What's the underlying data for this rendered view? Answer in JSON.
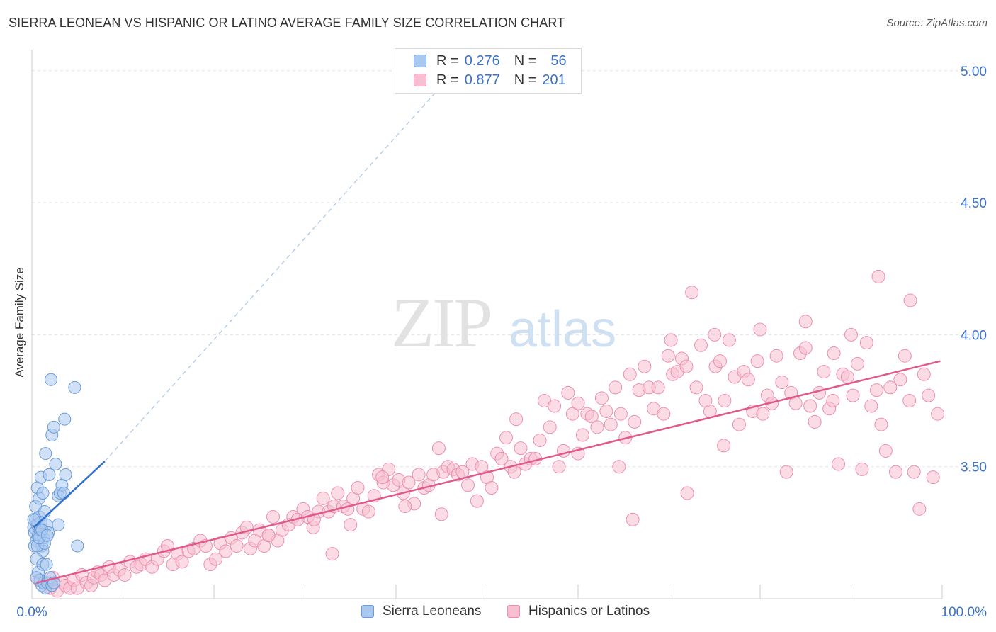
{
  "title": "SIERRA LEONEAN VS HISPANIC OR LATINO AVERAGE FAMILY SIZE CORRELATION CHART",
  "source": "Source: ZipAtlas.com",
  "watermark": {
    "zip": "ZIP",
    "atlas": "atlas"
  },
  "legend": {
    "r_label": "R =",
    "n_label": "N =",
    "rows": [
      {
        "r": "0.276",
        "n": "56",
        "fill": "#a9c8f0",
        "stroke": "#6b9bd8"
      },
      {
        "r": "0.877",
        "n": "201",
        "fill": "#f7bfd0",
        "stroke": "#ec8fae"
      }
    ]
  },
  "bottom_legend": [
    {
      "label": "Sierra Leoneans",
      "fill": "#a9c8f0",
      "stroke": "#6b9bd8"
    },
    {
      "label": "Hispanics or Latinos",
      "fill": "#f7bfd0",
      "stroke": "#ec8fae"
    }
  ],
  "chart_data": {
    "type": "scatter",
    "title": "SIERRA LEONEAN VS HISPANIC OR LATINO AVERAGE FAMILY SIZE CORRELATION CHART",
    "xlabel": "",
    "ylabel": "Average Family Size",
    "x_unit": "%",
    "xlim": [
      0,
      100
    ],
    "ylim": [
      3.0,
      5.08
    ],
    "x_tick_labels": [
      "0.0%",
      "100.0%"
    ],
    "y_ticks": [
      5.0,
      4.5,
      4.0,
      3.5
    ],
    "y_tick_labels": [
      "5.00",
      "4.50",
      "4.00",
      "3.50"
    ],
    "grid": true,
    "colors": {
      "blue_fill": "#a9c8f0",
      "blue_stroke": "#6b9bd8",
      "blue_line": "#2f6fce",
      "pink_fill": "#f7bfd0",
      "pink_stroke": "#ec8fae",
      "pink_line": "#e0598a",
      "tick_text": "#3a72c8",
      "grid": "#e3e3e3"
    },
    "series": [
      {
        "name": "Sierra Leoneans",
        "color": "#a9c8f0",
        "r": 0.276,
        "n": 56,
        "trend": {
          "x": [
            0.2,
            8.0
          ],
          "y": [
            3.27,
            3.52
          ],
          "dashed_extension_to": [
            47.0,
            5.02
          ]
        },
        "points": [
          [
            0.2,
            3.27
          ],
          [
            0.3,
            3.25
          ],
          [
            0.4,
            3.3
          ],
          [
            0.5,
            3.22
          ],
          [
            0.6,
            3.28
          ],
          [
            0.7,
            3.24
          ],
          [
            0.8,
            3.31
          ],
          [
            0.9,
            3.26
          ],
          [
            1.0,
            3.29
          ],
          [
            1.1,
            3.2
          ],
          [
            1.2,
            3.18
          ],
          [
            1.3,
            3.23
          ],
          [
            0.4,
            3.35
          ],
          [
            0.6,
            3.42
          ],
          [
            0.8,
            3.38
          ],
          [
            1.0,
            3.46
          ],
          [
            1.2,
            3.4
          ],
          [
            1.4,
            3.33
          ],
          [
            1.6,
            3.28
          ],
          [
            1.8,
            3.25
          ],
          [
            0.5,
            3.15
          ],
          [
            0.7,
            3.1
          ],
          [
            0.9,
            3.07
          ],
          [
            1.1,
            3.05
          ],
          [
            1.3,
            3.06
          ],
          [
            1.5,
            3.04
          ],
          [
            1.7,
            3.06
          ],
          [
            2.0,
            3.08
          ],
          [
            2.2,
            3.05
          ],
          [
            1.9,
            3.47
          ],
          [
            2.2,
            3.62
          ],
          [
            2.4,
            3.65
          ],
          [
            2.1,
            3.83
          ],
          [
            1.5,
            3.55
          ],
          [
            2.6,
            3.51
          ],
          [
            2.9,
            3.39
          ],
          [
            3.1,
            3.4
          ],
          [
            3.3,
            3.43
          ],
          [
            3.6,
            3.68
          ],
          [
            4.7,
            3.8
          ],
          [
            5.0,
            3.2
          ],
          [
            2.9,
            3.28
          ],
          [
            3.5,
            3.4
          ],
          [
            3.7,
            3.47
          ],
          [
            0.3,
            3.2
          ],
          [
            0.6,
            3.2
          ],
          [
            0.9,
            3.26
          ],
          [
            1.2,
            3.13
          ],
          [
            1.4,
            3.21
          ],
          [
            1.6,
            3.13
          ],
          [
            0.2,
            3.3
          ],
          [
            0.5,
            3.08
          ],
          [
            0.8,
            3.23
          ],
          [
            1.1,
            3.26
          ],
          [
            2.4,
            3.06
          ],
          [
            1.7,
            3.24
          ]
        ]
      },
      {
        "name": "Hispanics or Latinos",
        "color": "#f7bfd0",
        "r": 0.877,
        "n": 201,
        "trend": {
          "x": [
            0.5,
            99.8
          ],
          "y": [
            3.06,
            3.9
          ]
        },
        "points": [
          [
            0.8,
            3.07
          ],
          [
            1.5,
            3.06
          ],
          [
            2.0,
            3.04
          ],
          [
            2.3,
            3.08
          ],
          [
            2.8,
            3.03
          ],
          [
            3.4,
            3.06
          ],
          [
            3.7,
            3.05
          ],
          [
            4.2,
            3.04
          ],
          [
            4.6,
            3.07
          ],
          [
            5.0,
            3.04
          ],
          [
            5.5,
            3.09
          ],
          [
            6.0,
            3.06
          ],
          [
            6.5,
            3.05
          ],
          [
            6.8,
            3.08
          ],
          [
            7.2,
            3.1
          ],
          [
            7.6,
            3.09
          ],
          [
            8.0,
            3.07
          ],
          [
            8.5,
            3.12
          ],
          [
            9.0,
            3.09
          ],
          [
            9.6,
            3.11
          ],
          [
            10.2,
            3.09
          ],
          [
            10.8,
            3.14
          ],
          [
            11.5,
            3.12
          ],
          [
            12.0,
            3.13
          ],
          [
            12.5,
            3.15
          ],
          [
            13.2,
            3.12
          ],
          [
            13.8,
            3.15
          ],
          [
            14.5,
            3.18
          ],
          [
            14.9,
            3.2
          ],
          [
            15.5,
            3.13
          ],
          [
            16.0,
            3.17
          ],
          [
            16.5,
            3.14
          ],
          [
            17.2,
            3.18
          ],
          [
            17.8,
            3.19
          ],
          [
            18.5,
            3.22
          ],
          [
            19.1,
            3.2
          ],
          [
            19.6,
            3.13
          ],
          [
            20.2,
            3.15
          ],
          [
            20.7,
            3.21
          ],
          [
            21.3,
            3.18
          ],
          [
            21.9,
            3.23
          ],
          [
            22.5,
            3.2
          ],
          [
            23.1,
            3.25
          ],
          [
            23.6,
            3.27
          ],
          [
            24.0,
            3.19
          ],
          [
            24.5,
            3.22
          ],
          [
            25.0,
            3.26
          ],
          [
            25.5,
            3.2
          ],
          [
            26.0,
            3.24
          ],
          [
            26.5,
            3.31
          ],
          [
            27.0,
            3.22
          ],
          [
            27.5,
            3.26
          ],
          [
            28.2,
            3.28
          ],
          [
            28.7,
            3.31
          ],
          [
            29.2,
            3.3
          ],
          [
            29.8,
            3.34
          ],
          [
            30.3,
            3.31
          ],
          [
            30.9,
            3.27
          ],
          [
            31.5,
            3.33
          ],
          [
            32.0,
            3.38
          ],
          [
            32.6,
            3.33
          ],
          [
            33.2,
            3.35
          ],
          [
            33.6,
            3.4
          ],
          [
            34.2,
            3.35
          ],
          [
            34.7,
            3.34
          ],
          [
            35.3,
            3.38
          ],
          [
            35.8,
            3.42
          ],
          [
            36.4,
            3.34
          ],
          [
            37.0,
            3.33
          ],
          [
            37.6,
            3.39
          ],
          [
            38.1,
            3.47
          ],
          [
            38.6,
            3.44
          ],
          [
            39.2,
            3.49
          ],
          [
            39.7,
            3.43
          ],
          [
            40.3,
            3.45
          ],
          [
            40.8,
            3.4
          ],
          [
            41.4,
            3.44
          ],
          [
            42.0,
            3.36
          ],
          [
            42.5,
            3.47
          ],
          [
            43.1,
            3.42
          ],
          [
            43.6,
            3.43
          ],
          [
            44.1,
            3.47
          ],
          [
            44.7,
            3.57
          ],
          [
            45.2,
            3.48
          ],
          [
            45.7,
            3.5
          ],
          [
            46.3,
            3.49
          ],
          [
            46.8,
            3.47
          ],
          [
            47.3,
            3.48
          ],
          [
            47.9,
            3.43
          ],
          [
            48.4,
            3.51
          ],
          [
            48.9,
            3.37
          ],
          [
            49.4,
            3.5
          ],
          [
            50.0,
            3.46
          ],
          [
            50.5,
            3.42
          ],
          [
            51.1,
            3.55
          ],
          [
            51.6,
            3.53
          ],
          [
            52.1,
            3.61
          ],
          [
            52.6,
            3.5
          ],
          [
            53.2,
            3.68
          ],
          [
            53.7,
            3.57
          ],
          [
            54.2,
            3.51
          ],
          [
            54.8,
            3.53
          ],
          [
            55.3,
            3.53
          ],
          [
            55.8,
            3.6
          ],
          [
            56.3,
            3.75
          ],
          [
            56.9,
            3.65
          ],
          [
            57.4,
            3.73
          ],
          [
            57.9,
            3.5
          ],
          [
            58.4,
            3.56
          ],
          [
            58.9,
            3.78
          ],
          [
            59.4,
            3.7
          ],
          [
            60.0,
            3.74
          ],
          [
            60.5,
            3.62
          ],
          [
            61.0,
            3.7
          ],
          [
            61.5,
            3.69
          ],
          [
            62.1,
            3.65
          ],
          [
            62.6,
            3.76
          ],
          [
            63.1,
            3.71
          ],
          [
            63.6,
            3.66
          ],
          [
            64.1,
            3.8
          ],
          [
            64.7,
            3.7
          ],
          [
            65.2,
            3.61
          ],
          [
            65.7,
            3.85
          ],
          [
            66.2,
            3.67
          ],
          [
            66.7,
            3.79
          ],
          [
            67.3,
            3.88
          ],
          [
            67.8,
            3.8
          ],
          [
            68.3,
            3.72
          ],
          [
            68.8,
            3.8
          ],
          [
            69.4,
            3.7
          ],
          [
            69.9,
            3.92
          ],
          [
            70.4,
            3.85
          ],
          [
            70.9,
            3.86
          ],
          [
            71.4,
            3.91
          ],
          [
            71.9,
            3.88
          ],
          [
            72.5,
            4.16
          ],
          [
            73.0,
            3.8
          ],
          [
            73.5,
            3.96
          ],
          [
            74.0,
            3.75
          ],
          [
            74.5,
            3.71
          ],
          [
            75.1,
            3.88
          ],
          [
            75.6,
            3.9
          ],
          [
            76.1,
            3.75
          ],
          [
            76.6,
            3.98
          ],
          [
            77.2,
            3.84
          ],
          [
            77.7,
            3.66
          ],
          [
            78.2,
            3.86
          ],
          [
            78.7,
            3.83
          ],
          [
            79.2,
            3.71
          ],
          [
            79.7,
            3.9
          ],
          [
            80.3,
            3.7
          ],
          [
            80.8,
            3.77
          ],
          [
            81.3,
            3.74
          ],
          [
            81.8,
            3.92
          ],
          [
            82.4,
            3.82
          ],
          [
            82.9,
            3.48
          ],
          [
            83.4,
            3.78
          ],
          [
            83.9,
            3.74
          ],
          [
            84.4,
            3.93
          ],
          [
            85.0,
            3.95
          ],
          [
            85.5,
            3.73
          ],
          [
            86.0,
            3.67
          ],
          [
            86.5,
            3.78
          ],
          [
            87.0,
            3.86
          ],
          [
            87.6,
            3.72
          ],
          [
            88.1,
            3.93
          ],
          [
            88.6,
            3.51
          ],
          [
            89.1,
            3.85
          ],
          [
            89.6,
            3.84
          ],
          [
            90.2,
            3.77
          ],
          [
            90.7,
            3.89
          ],
          [
            91.2,
            3.49
          ],
          [
            91.7,
            3.97
          ],
          [
            92.2,
            3.73
          ],
          [
            92.8,
            3.79
          ],
          [
            93.3,
            3.66
          ],
          [
            93.8,
            3.56
          ],
          [
            94.3,
            3.8
          ],
          [
            94.9,
            3.48
          ],
          [
            95.4,
            3.83
          ],
          [
            95.9,
            3.92
          ],
          [
            96.4,
            3.75
          ],
          [
            96.9,
            3.48
          ],
          [
            97.5,
            3.34
          ],
          [
            98.0,
            3.85
          ],
          [
            98.5,
            3.77
          ],
          [
            99.0,
            3.46
          ],
          [
            99.5,
            3.7
          ],
          [
            70.2,
            3.98
          ],
          [
            75.0,
            4.0
          ],
          [
            80.0,
            4.02
          ],
          [
            85.0,
            4.05
          ],
          [
            90.0,
            4.0
          ],
          [
            93.0,
            4.22
          ],
          [
            96.5,
            4.13
          ],
          [
            88.0,
            3.75
          ],
          [
            76.0,
            3.58
          ],
          [
            64.5,
            3.5
          ],
          [
            60.0,
            3.55
          ],
          [
            72.0,
            3.4
          ],
          [
            66.0,
            3.3
          ],
          [
            45.0,
            3.32
          ],
          [
            41.0,
            3.35
          ],
          [
            35.0,
            3.28
          ],
          [
            33.0,
            3.17
          ],
          [
            26.0,
            3.24
          ],
          [
            31.0,
            3.3
          ],
          [
            38.5,
            3.46
          ],
          [
            53.0,
            3.48
          ]
        ]
      }
    ]
  }
}
